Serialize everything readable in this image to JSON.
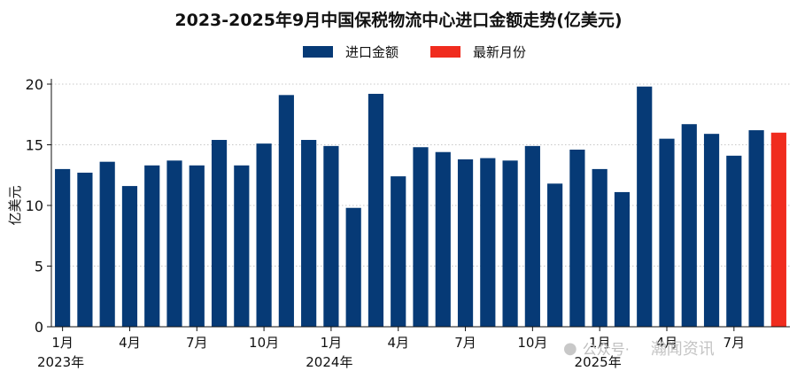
{
  "chart_data": {
    "type": "bar",
    "title": "2023-2025年9月中国保税物流中心进口金额走势(亿美元)",
    "ylabel": "亿美元",
    "xlabel": "",
    "ylim": [
      0,
      20
    ],
    "yticks": [
      0,
      5,
      10,
      15,
      20
    ],
    "grid": "horizontal dotted",
    "legend_position": "top-center",
    "categories": [
      "2023-01",
      "2023-02",
      "2023-03",
      "2023-04",
      "2023-05",
      "2023-06",
      "2023-07",
      "2023-08",
      "2023-09",
      "2023-10",
      "2023-11",
      "2023-12",
      "2024-01",
      "2024-02",
      "2024-03",
      "2024-04",
      "2024-05",
      "2024-06",
      "2024-07",
      "2024-08",
      "2024-09",
      "2024-10",
      "2024-11",
      "2024-12",
      "2025-01",
      "2025-02",
      "2025-03",
      "2025-04",
      "2025-05",
      "2025-06",
      "2025-07",
      "2025-08",
      "2025-09"
    ],
    "series": [
      {
        "name": "进口金额",
        "color": "#063a76",
        "values": [
          13.0,
          12.7,
          13.6,
          11.6,
          13.3,
          13.7,
          13.3,
          15.4,
          13.3,
          15.1,
          19.1,
          15.4,
          14.9,
          9.8,
          19.2,
          12.4,
          14.8,
          14.4,
          13.8,
          13.9,
          13.7,
          14.9,
          11.8,
          14.6,
          13.0,
          11.1,
          19.8,
          15.5,
          16.7,
          15.9,
          14.1,
          16.2,
          null
        ]
      },
      {
        "name": "最新月份",
        "color": "#f02c1e",
        "values": [
          null,
          null,
          null,
          null,
          null,
          null,
          null,
          null,
          null,
          null,
          null,
          null,
          null,
          null,
          null,
          null,
          null,
          null,
          null,
          null,
          null,
          null,
          null,
          null,
          null,
          null,
          null,
          null,
          null,
          null,
          null,
          null,
          16.0
        ]
      }
    ],
    "x_tick_labels": [
      {
        "index": 0,
        "label": "1月"
      },
      {
        "index": 3,
        "label": "4月"
      },
      {
        "index": 6,
        "label": "7月"
      },
      {
        "index": 9,
        "label": "10月"
      },
      {
        "index": 12,
        "label": "1月"
      },
      {
        "index": 15,
        "label": "4月"
      },
      {
        "index": 18,
        "label": "7月"
      },
      {
        "index": 21,
        "label": "10月"
      },
      {
        "index": 24,
        "label": "1月"
      },
      {
        "index": 27,
        "label": "4月"
      },
      {
        "index": 30,
        "label": "7月"
      }
    ],
    "year_labels": [
      {
        "index": 0,
        "label": "2023年"
      },
      {
        "index": 12,
        "label": "2024年"
      },
      {
        "index": 24,
        "label": "2025年"
      }
    ]
  },
  "watermark": {
    "icon": "wechat-icon",
    "prefix": "公众号·",
    "name": "瀚闻资讯"
  }
}
